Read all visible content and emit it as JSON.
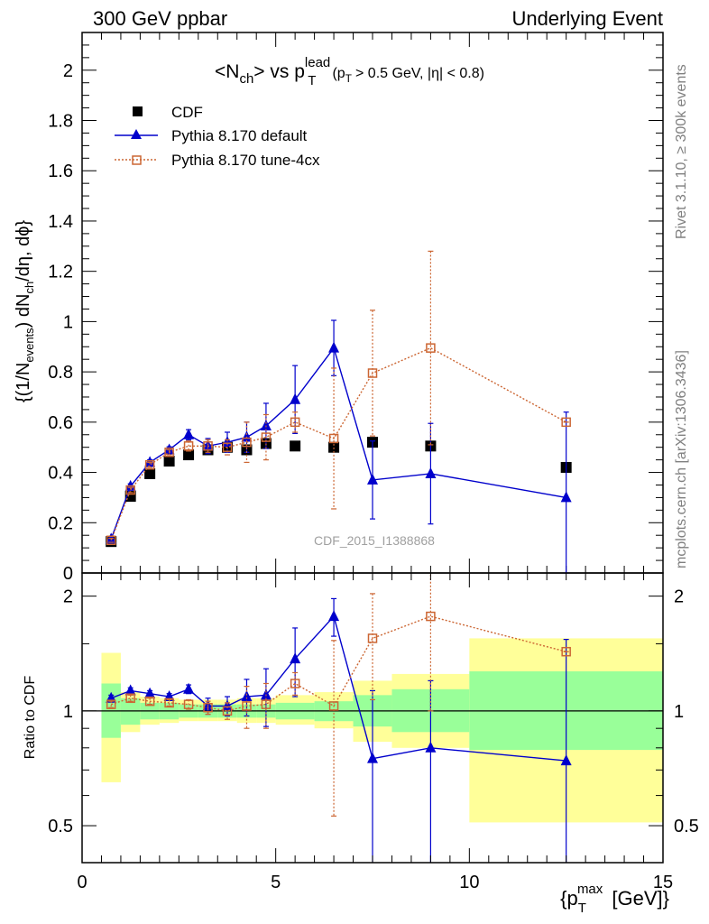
{
  "header": {
    "left": "300 GeV ppbar",
    "right": "Underlying Event"
  },
  "side_labels": {
    "rivet": "Rivet 3.1.10, ≥ 300k events",
    "mcplots": "mcplots.cern.ch [arXiv:1306.3436]"
  },
  "watermark": "CDF_2015_I1388868",
  "chart_data": [
    {
      "type": "scatter",
      "title_main": "<N",
      "title_main_sub": "ch",
      "title_vs": "> vs p",
      "title_vs_sup": "lead",
      "title_vs_sub": "T",
      "title_cut": "(p",
      "title_cut_sub": "T",
      "title_cut_rest": "> 0.5 GeV, |η| < 0.8)",
      "ylabel": "{(1/N_events) dN_ch/dη, dϕ}",
      "xlim": [
        0,
        15
      ],
      "ylim": [
        0,
        2.15
      ],
      "yticks": [
        "0",
        "0.2",
        "0.4",
        "0.6",
        "0.8",
        "1",
        "1.2",
        "1.4",
        "1.6",
        "1.8",
        "2"
      ],
      "legend": [
        "CDF",
        "Pythia 8.170 default",
        "Pythia 8.170 tune-4cx"
      ],
      "series": [
        {
          "name": "CDF",
          "color": "#000000",
          "marker": "square",
          "x": [
            0.75,
            1.25,
            1.75,
            2.25,
            2.75,
            3.25,
            3.75,
            4.25,
            4.75,
            5.5,
            6.5,
            7.5,
            9.0,
            12.5
          ],
          "y": [
            0.125,
            0.305,
            0.395,
            0.445,
            0.47,
            0.49,
            0.5,
            0.49,
            0.515,
            0.505,
            0.5,
            0.52,
            0.505,
            0.42
          ]
        },
        {
          "name": "Pythia 8.170 default",
          "color": "#0000cc",
          "marker": "triangle",
          "x": [
            0.75,
            1.25,
            1.75,
            2.25,
            2.75,
            3.25,
            3.75,
            4.25,
            4.75,
            5.5,
            6.5,
            7.5,
            9.0,
            12.5
          ],
          "y": [
            0.135,
            0.345,
            0.44,
            0.49,
            0.55,
            0.505,
            0.52,
            0.54,
            0.585,
            0.69,
            0.895,
            0.37,
            0.395,
            0.3
          ],
          "yerr": [
            0.008,
            0.01,
            0.01,
            0.012,
            0.02,
            0.03,
            0.04,
            0.06,
            0.09,
            0.135,
            0.11,
            0.155,
            0.2,
            0.34
          ]
        },
        {
          "name": "Pythia 8.170 tune-4cx",
          "color": "#cc6633",
          "marker": "open-square",
          "x": [
            0.75,
            1.25,
            1.75,
            2.25,
            2.75,
            3.25,
            3.75,
            4.25,
            4.75,
            5.5,
            6.5,
            7.5,
            9.0,
            12.5
          ],
          "y": [
            0.13,
            0.33,
            0.43,
            0.48,
            0.505,
            0.505,
            0.5,
            0.52,
            0.54,
            0.6,
            0.535,
            0.795,
            0.895,
            0.6
          ],
          "yerr": [
            0.008,
            0.01,
            0.01,
            0.01,
            0.02,
            0.025,
            0.03,
            0.08,
            0.09,
            0.04,
            0.28,
            0.25,
            0.385,
            0.0
          ]
        }
      ]
    },
    {
      "type": "scatter",
      "ylabel": "Ratio to CDF",
      "xlabel": "{p_T^max [GeV]}",
      "xlim": [
        0,
        15
      ],
      "ylim": [
        0.4,
        2.3
      ],
      "yscale": "log",
      "xticks": [
        "0",
        "5",
        "10",
        "15"
      ],
      "yticks": [
        "0.5",
        "1",
        "2"
      ],
      "bands": {
        "yellow": "#ffff99",
        "green": "#99ff99",
        "bins": [
          {
            "x0": 0.5,
            "x1": 1.0,
            "y_lo": 0.65,
            "y_hi": 1.42,
            "g_lo": 0.85,
            "g_hi": 1.18
          },
          {
            "x0": 1.0,
            "x1": 1.5,
            "y_lo": 0.88,
            "y_hi": 1.12,
            "g_lo": 0.92,
            "g_hi": 1.08
          },
          {
            "x0": 1.5,
            "x1": 2.0,
            "y_lo": 0.92,
            "y_hi": 1.09,
            "g_lo": 0.95,
            "g_hi": 1.05
          },
          {
            "x0": 2.0,
            "x1": 2.5,
            "y_lo": 0.93,
            "y_hi": 1.08,
            "g_lo": 0.95,
            "g_hi": 1.05
          },
          {
            "x0": 2.5,
            "x1": 3.0,
            "y_lo": 0.94,
            "y_hi": 1.07,
            "g_lo": 0.96,
            "g_hi": 1.04
          },
          {
            "x0": 3.0,
            "x1": 3.5,
            "y_lo": 0.94,
            "y_hi": 1.07,
            "g_lo": 0.96,
            "g_hi": 1.04
          },
          {
            "x0": 3.5,
            "x1": 4.0,
            "y_lo": 0.94,
            "y_hi": 1.07,
            "g_lo": 0.96,
            "g_hi": 1.04
          },
          {
            "x0": 4.0,
            "x1": 4.5,
            "y_lo": 0.93,
            "y_hi": 1.08,
            "g_lo": 0.96,
            "g_hi": 1.04
          },
          {
            "x0": 4.5,
            "x1": 5.0,
            "y_lo": 0.93,
            "y_hi": 1.08,
            "g_lo": 0.96,
            "g_hi": 1.04
          },
          {
            "x0": 5.0,
            "x1": 6.0,
            "y_lo": 0.92,
            "y_hi": 1.1,
            "g_lo": 0.95,
            "g_hi": 1.05
          },
          {
            "x0": 6.0,
            "x1": 7.0,
            "y_lo": 0.9,
            "y_hi": 1.12,
            "g_lo": 0.94,
            "g_hi": 1.06
          },
          {
            "x0": 7.0,
            "x1": 8.0,
            "y_lo": 0.83,
            "y_hi": 1.2,
            "g_lo": 0.91,
            "g_hi": 1.1
          },
          {
            "x0": 8.0,
            "x1": 10.0,
            "y_lo": 0.8,
            "y_hi": 1.25,
            "g_lo": 0.88,
            "g_hi": 1.14
          },
          {
            "x0": 10.0,
            "x1": 15.0,
            "y_lo": 0.51,
            "y_hi": 1.55,
            "g_lo": 0.79,
            "g_hi": 1.27
          }
        ]
      },
      "series": [
        {
          "name": "Pythia 8.170 default",
          "color": "#0000cc",
          "marker": "triangle",
          "x": [
            0.75,
            1.25,
            1.75,
            2.25,
            2.75,
            3.25,
            3.75,
            4.25,
            4.75,
            5.5,
            6.5,
            7.5,
            9.0,
            12.5
          ],
          "y": [
            1.08,
            1.13,
            1.11,
            1.09,
            1.14,
            1.03,
            1.03,
            1.09,
            1.1,
            1.37,
            1.77,
            0.75,
            0.8,
            0.74
          ],
          "yerr": [
            0.02,
            0.02,
            0.02,
            0.02,
            0.03,
            0.05,
            0.06,
            0.12,
            0.19,
            0.28,
            0.2,
            0.38,
            0.4,
            0.8
          ]
        },
        {
          "name": "Pythia 8.170 tune-4cx",
          "color": "#cc6633",
          "marker": "open-square",
          "x": [
            0.75,
            1.25,
            1.75,
            2.25,
            2.75,
            3.25,
            3.75,
            4.25,
            4.75,
            5.5,
            6.5,
            7.5,
            9.0,
            12.5
          ],
          "y": [
            1.04,
            1.08,
            1.06,
            1.05,
            1.04,
            1.02,
            1.0,
            1.03,
            1.04,
            1.18,
            1.03,
            1.55,
            1.77,
            1.43
          ],
          "yerr": [
            0.02,
            0.02,
            0.02,
            0.02,
            0.03,
            0.04,
            0.05,
            0.13,
            0.14,
            0.08,
            0.5,
            0.48,
            0.77,
            0.0
          ]
        }
      ]
    }
  ]
}
